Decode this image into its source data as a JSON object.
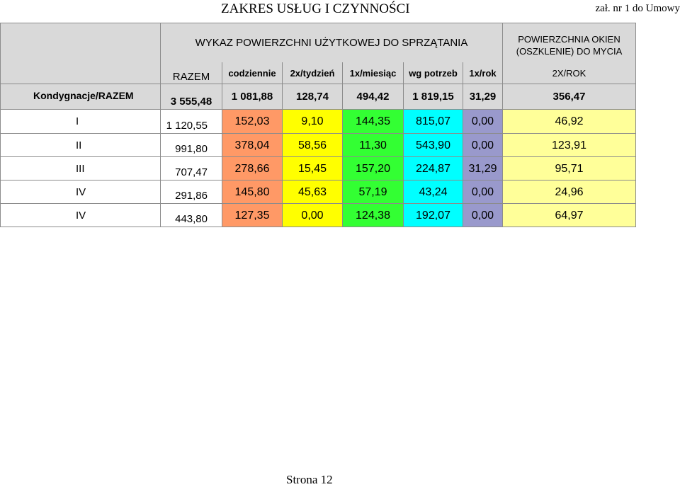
{
  "header": {
    "title": "ZAKRES USŁUG I CZYNNOŚCI",
    "attachment": "zał. nr 1 do Umowy"
  },
  "table": {
    "main_header": "WYKAZ POWIERZCHNI UŻYTKOWEJ DO SPRZĄTANIA",
    "windows_header_line1": "POWIERZCHNIA OKIEN",
    "windows_header_line2": "(OSZKLENIE) DO MYCIA",
    "col_razem": "RAZEM",
    "col_codziennie": "codziennie",
    "col_2x_tydzien": "2x/tydzień",
    "col_1x_miesiac": "1x/miesiąc",
    "col_wg_potrzeb": "wg potrzeb",
    "col_1x_rok": "1x/rok",
    "col_2x_rok": "2X/ROK",
    "total_row": {
      "label": "Kondygnacje/RAZEM",
      "razem": "3  555,48",
      "codziennie": "1  081,88",
      "tydzien": "128,74",
      "miesiac": "494,42",
      "potrzeb": "1  819,15",
      "rok": "31,29",
      "okna": "356,47"
    },
    "rows": [
      {
        "label": "I",
        "razem": "1 120,55",
        "codziennie": "152,03",
        "tydzien": "9,10",
        "miesiac": "144,35",
        "potrzeb": "815,07",
        "rok": "0,00",
        "okna": "46,92"
      },
      {
        "label": "II",
        "razem": "991,80",
        "codziennie": "378,04",
        "tydzien": "58,56",
        "miesiac": "11,30",
        "potrzeb": "543,90",
        "rok": "0,00",
        "okna": "123,91"
      },
      {
        "label": "III",
        "razem": "707,47",
        "codziennie": "278,66",
        "tydzien": "15,45",
        "miesiac": "157,20",
        "potrzeb": "224,87",
        "rok": "31,29",
        "okna": "95,71"
      },
      {
        "label": "IV",
        "razem": "291,86",
        "codziennie": "145,80",
        "tydzien": "45,63",
        "miesiac": "57,19",
        "potrzeb": "43,24",
        "rok": "0,00",
        "okna": "24,96"
      },
      {
        "label": "IV",
        "razem": "443,80",
        "codziennie": "127,35",
        "tydzien": "0,00",
        "miesiac": "124,38",
        "potrzeb": "192,07",
        "rok": "0,00",
        "okna": "64,97"
      }
    ]
  },
  "footer": {
    "page": "Strona 12"
  },
  "colors": {
    "header_grey": "#d9d9d9",
    "codziennie": "#ff9966",
    "tydzien": "#ffff00",
    "miesiac": "#33ff33",
    "potrzeb": "#00ffff",
    "rok": "#9999cc",
    "okna": "#ffff99"
  }
}
